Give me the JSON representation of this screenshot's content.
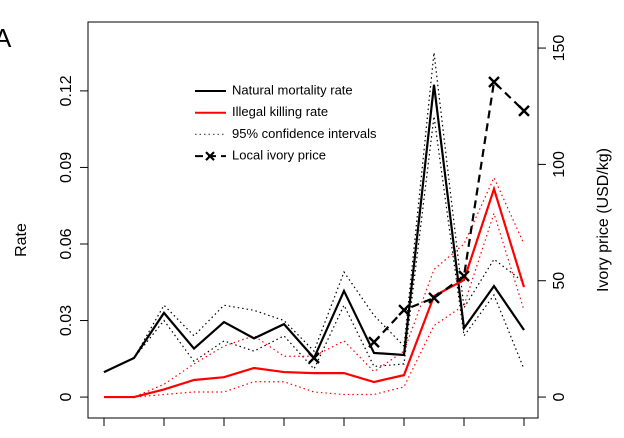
{
  "chart_data": {
    "type": "line",
    "panel_label": "A",
    "y_label": "Rate",
    "y2_label": "Ivory price (USD/kg)",
    "categories": [
      null,
      null,
      null,
      null,
      null,
      null,
      null,
      null,
      null,
      null,
      null,
      null,
      null,
      null,
      null
    ],
    "ylim": [
      -0.0082,
      0.147
    ],
    "yticks": [
      0,
      0.03,
      0.06,
      0.09,
      0.12
    ],
    "y2lim": [
      -9,
      161.2
    ],
    "y2ticks": [
      0,
      50,
      100,
      150
    ],
    "series": [
      {
        "name": "Natural mortality rate",
        "color": "#000000",
        "dash": "solid",
        "values": [
          0.0098,
          0.0153,
          0.033,
          0.019,
          0.0294,
          0.023,
          0.0286,
          0.0153,
          0.0416,
          0.0173,
          0.0165,
          0.1224,
          0.027,
          0.0435,
          0.0263
        ]
      },
      {
        "name": "Illegal killing rate",
        "color": "#ff0000",
        "dash": "solid",
        "values": [
          0,
          0,
          0.003,
          0.0067,
          0.0078,
          0.0114,
          0.0098,
          0.0094,
          0.0094,
          0.0059,
          0.0086,
          0.0396,
          0.0459,
          0.0816,
          0.0431
        ]
      },
      {
        "name": "95% confidence intervals",
        "color": "#555555",
        "dash": "dotted",
        "bands": [
          {
            "color": "#000000",
            "upper": [
              0.0098,
              0.0153,
              0.036,
              0.024,
              0.036,
              0.034,
              0.03,
              0.018,
              0.049,
              0.032,
              0.02,
              0.135,
              0.035,
              0.054,
              0.045
            ],
            "lower": [
              0.0098,
              0.0153,
              0.03,
              0.014,
              0.022,
              0.018,
              0.024,
              0.011,
              0.036,
              0.012,
              0.013,
              0.11,
              0.024,
              0.04,
              0.011
            ]
          },
          {
            "color": "#ff0000",
            "upper": [
              0,
              0,
              0.005,
              0.013,
              0.02,
              0.024,
              0.016,
              0.016,
              0.022,
              0.01,
              0.018,
              0.05,
              0.06,
              0.086,
              0.06
            ],
            "lower": [
              0,
              0,
              0.001,
              0.002,
              0.002,
              0.006,
              0.006,
              0.002,
              0.001,
              0.001,
              0.004,
              0.028,
              0.036,
              0.072,
              0.034
            ]
          }
        ]
      },
      {
        "name": "Local ivory price",
        "color": "#000000",
        "dash": "dashed",
        "marker": "x",
        "axis": "y2",
        "values": [
          null,
          null,
          null,
          null,
          null,
          null,
          null,
          16.8,
          null,
          23.6,
          37.4,
          42.6,
          52,
          135.4,
          123
        ]
      }
    ]
  }
}
